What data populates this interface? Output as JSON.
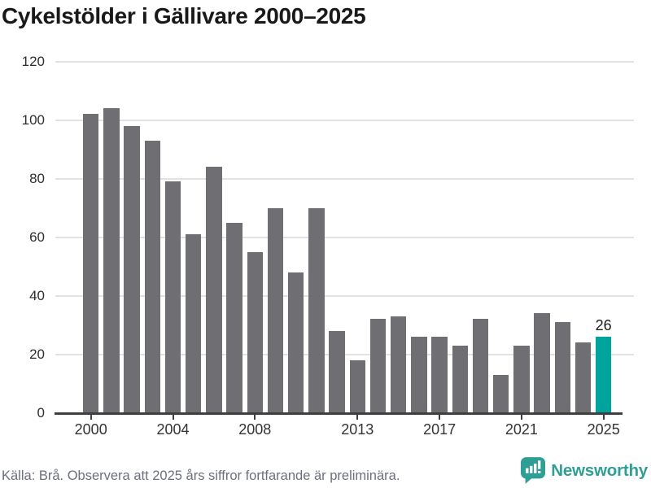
{
  "title": "Cykelstölder i Gällivare 2000–2025",
  "chart_data": {
    "type": "bar",
    "categories": [
      2000,
      2001,
      2002,
      2003,
      2004,
      2005,
      2006,
      2007,
      2008,
      2009,
      2010,
      2011,
      2012,
      2013,
      2014,
      2015,
      2016,
      2017,
      2018,
      2019,
      2020,
      2021,
      2022,
      2023,
      2024,
      2025
    ],
    "values": [
      102,
      104,
      98,
      93,
      79,
      61,
      84,
      65,
      55,
      70,
      48,
      70,
      28,
      18,
      32,
      33,
      26,
      26,
      23,
      32,
      13,
      23,
      34,
      31,
      24,
      26
    ],
    "title": "Cykelstölder i Gällivare 2000–2025",
    "xlabel": "",
    "ylabel": "",
    "ylim": [
      0,
      120
    ],
    "y_ticks": [
      0,
      20,
      40,
      60,
      80,
      100,
      120
    ],
    "x_tick_labels": [
      "2000",
      "2004",
      "2008",
      "2013",
      "2017",
      "2021",
      "2025"
    ],
    "grid": true,
    "legend_position": "none",
    "highlight_year": 2025,
    "highlight_value_label": "26",
    "bar_color": "#6e6e73",
    "highlight_color": "#00a49c"
  },
  "footer": {
    "source_note": "Källa: Brå. Observera att 2025 års siffror fortfarande är preliminära.",
    "brand": "Newsworthy"
  },
  "colors": {
    "bar": "#6e6e73",
    "highlight": "#00a49c",
    "gridline": "#e2e2e2",
    "axis": "#3f3f3f",
    "title_text": "#191919",
    "tick_text": "#333333",
    "footer_text": "#6b707c",
    "brand_teal": "#2f9f95"
  }
}
